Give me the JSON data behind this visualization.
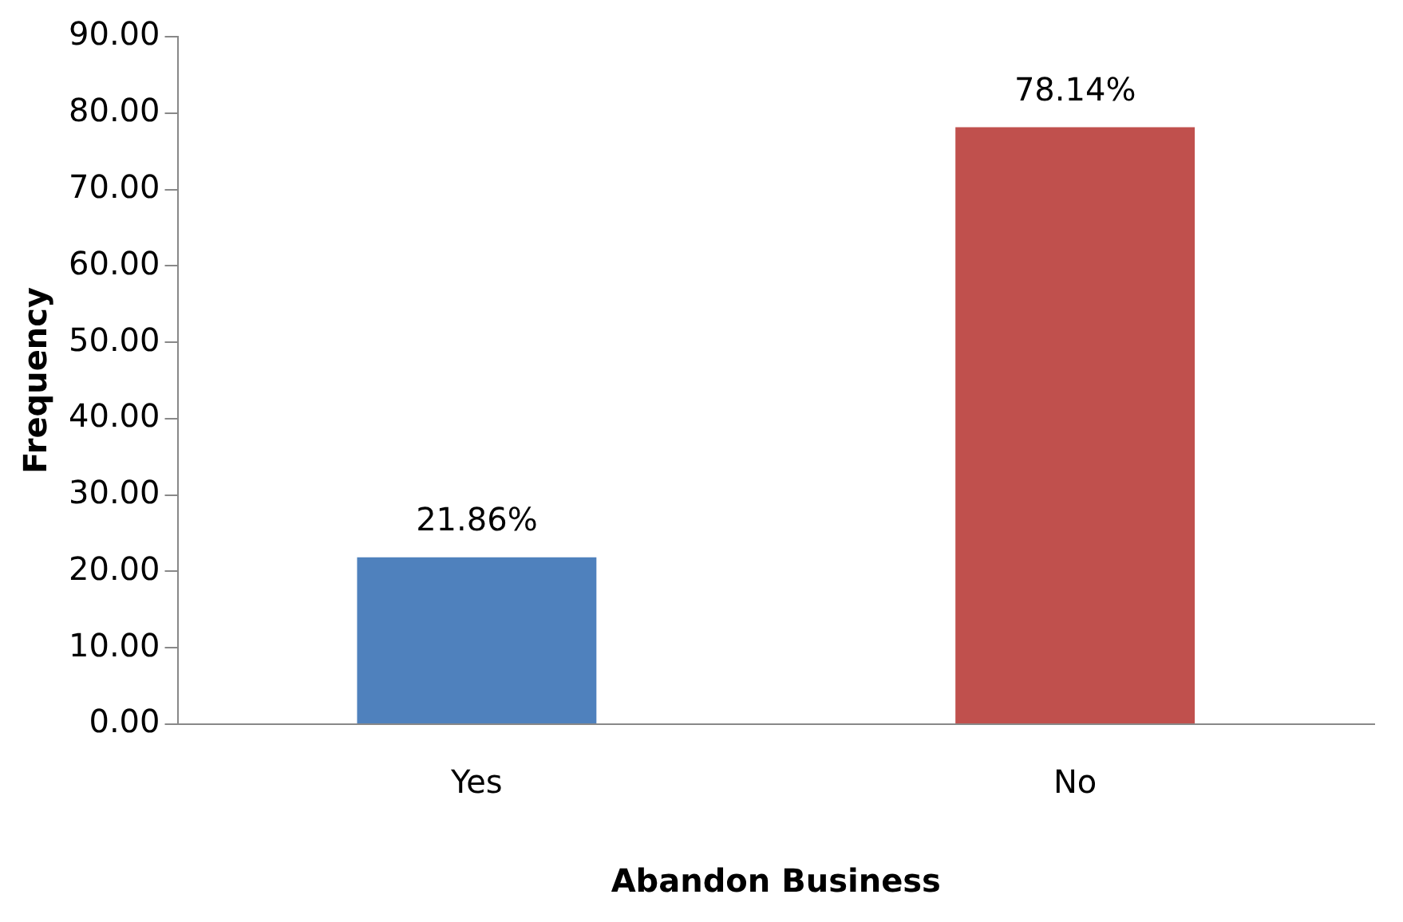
{
  "chart_data": {
    "type": "bar",
    "xlabel": "Abandon Business",
    "ylabel": "Frequency",
    "categories": [
      "Yes",
      "No"
    ],
    "values": [
      21.86,
      78.14
    ],
    "colors": [
      "#4f81bd",
      "#c0504d"
    ],
    "value_labels": [
      "21.86%",
      "78.14%"
    ],
    "ylim": [
      0,
      90
    ],
    "yticks": [
      {
        "value": 0,
        "label": "0.00"
      },
      {
        "value": 10,
        "label": "10.00"
      },
      {
        "value": 20,
        "label": "20.00"
      },
      {
        "value": 30,
        "label": "30.00"
      },
      {
        "value": 40,
        "label": "40.00"
      },
      {
        "value": 50,
        "label": "50.00"
      },
      {
        "value": 60,
        "label": "60.00"
      },
      {
        "value": 70,
        "label": "70.00"
      },
      {
        "value": 80,
        "label": "80.00"
      },
      {
        "value": 90,
        "label": "90.00"
      }
    ],
    "grid": false,
    "legend": false
  }
}
